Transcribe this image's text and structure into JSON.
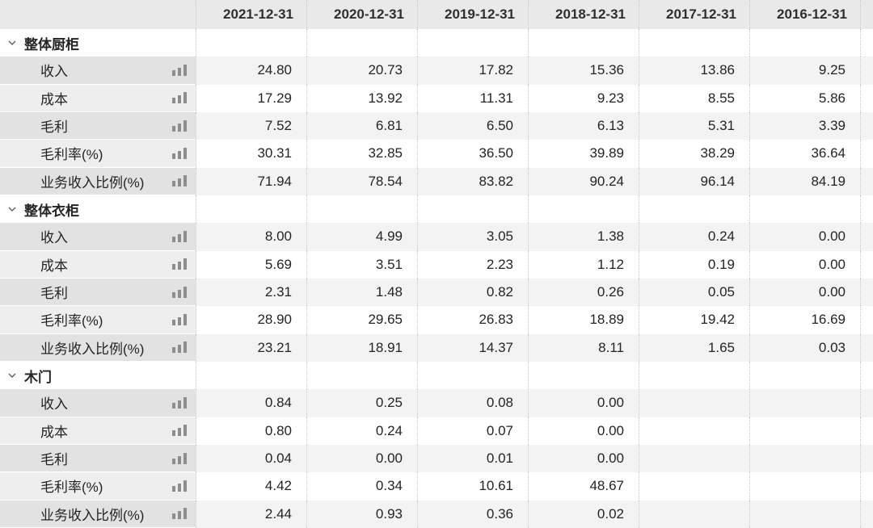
{
  "chart_data": {
    "type": "table",
    "title": "",
    "columns": [
      "2021-12-31",
      "2020-12-31",
      "2019-12-31",
      "2018-12-31",
      "2017-12-31",
      "2016-12-31"
    ],
    "corner_label": "",
    "groups": [
      {
        "name": "整体厨柜",
        "rows": [
          {
            "label": "收入",
            "values": [
              "24.80",
              "20.73",
              "17.82",
              "15.36",
              "13.86",
              "9.25"
            ]
          },
          {
            "label": "成本",
            "values": [
              "17.29",
              "13.92",
              "11.31",
              "9.23",
              "8.55",
              "5.86"
            ]
          },
          {
            "label": "毛利",
            "values": [
              "7.52",
              "6.81",
              "6.50",
              "6.13",
              "5.31",
              "3.39"
            ]
          },
          {
            "label": "毛利率(%)",
            "values": [
              "30.31",
              "32.85",
              "36.50",
              "39.89",
              "38.29",
              "36.64"
            ]
          },
          {
            "label": "业务收入比例(%)",
            "values": [
              "71.94",
              "78.54",
              "83.82",
              "90.24",
              "96.14",
              "84.19"
            ]
          }
        ]
      },
      {
        "name": "整体衣柜",
        "rows": [
          {
            "label": "收入",
            "values": [
              "8.00",
              "4.99",
              "3.05",
              "1.38",
              "0.24",
              "0.00"
            ]
          },
          {
            "label": "成本",
            "values": [
              "5.69",
              "3.51",
              "2.23",
              "1.12",
              "0.19",
              "0.00"
            ]
          },
          {
            "label": "毛利",
            "values": [
              "2.31",
              "1.48",
              "0.82",
              "0.26",
              "0.05",
              "0.00"
            ]
          },
          {
            "label": "毛利率(%)",
            "values": [
              "28.90",
              "29.65",
              "26.83",
              "18.89",
              "19.42",
              "16.69"
            ]
          },
          {
            "label": "业务收入比例(%)",
            "values": [
              "23.21",
              "18.91",
              "14.37",
              "8.11",
              "1.65",
              "0.03"
            ]
          }
        ]
      },
      {
        "name": "木门",
        "rows": [
          {
            "label": "收入",
            "values": [
              "0.84",
              "0.25",
              "0.08",
              "0.00",
              "",
              ""
            ]
          },
          {
            "label": "成本",
            "values": [
              "0.80",
              "0.24",
              "0.07",
              "0.00",
              "",
              ""
            ]
          },
          {
            "label": "毛利",
            "values": [
              "0.04",
              "0.00",
              "0.01",
              "0.00",
              "",
              ""
            ]
          },
          {
            "label": "毛利率(%)",
            "values": [
              "4.42",
              "0.34",
              "10.61",
              "48.67",
              "",
              ""
            ]
          },
          {
            "label": "业务收入比例(%)",
            "values": [
              "2.44",
              "0.93",
              "0.36",
              "0.02",
              "",
              ""
            ]
          }
        ]
      }
    ],
    "layout": {
      "striped_rows": true,
      "column_separators": "dotted",
      "values_alignment": "right"
    }
  },
  "icons": {
    "group_expand": "chevron-down-icon",
    "metric_chart_toggle": "bar-chart-icon"
  },
  "colors": {
    "header_bg": "#e9e9e9",
    "label_stripe_dark": "#e2e2e2",
    "label_stripe_light": "#eeeeee",
    "value_stripe": "#f3f3f3",
    "row_white": "#ffffff",
    "grid_dotted": "#c9c9c9",
    "text": "#252423",
    "bar_icon_gray": "#8d8d8d",
    "chevron_gray": "#5f5f5f"
  }
}
